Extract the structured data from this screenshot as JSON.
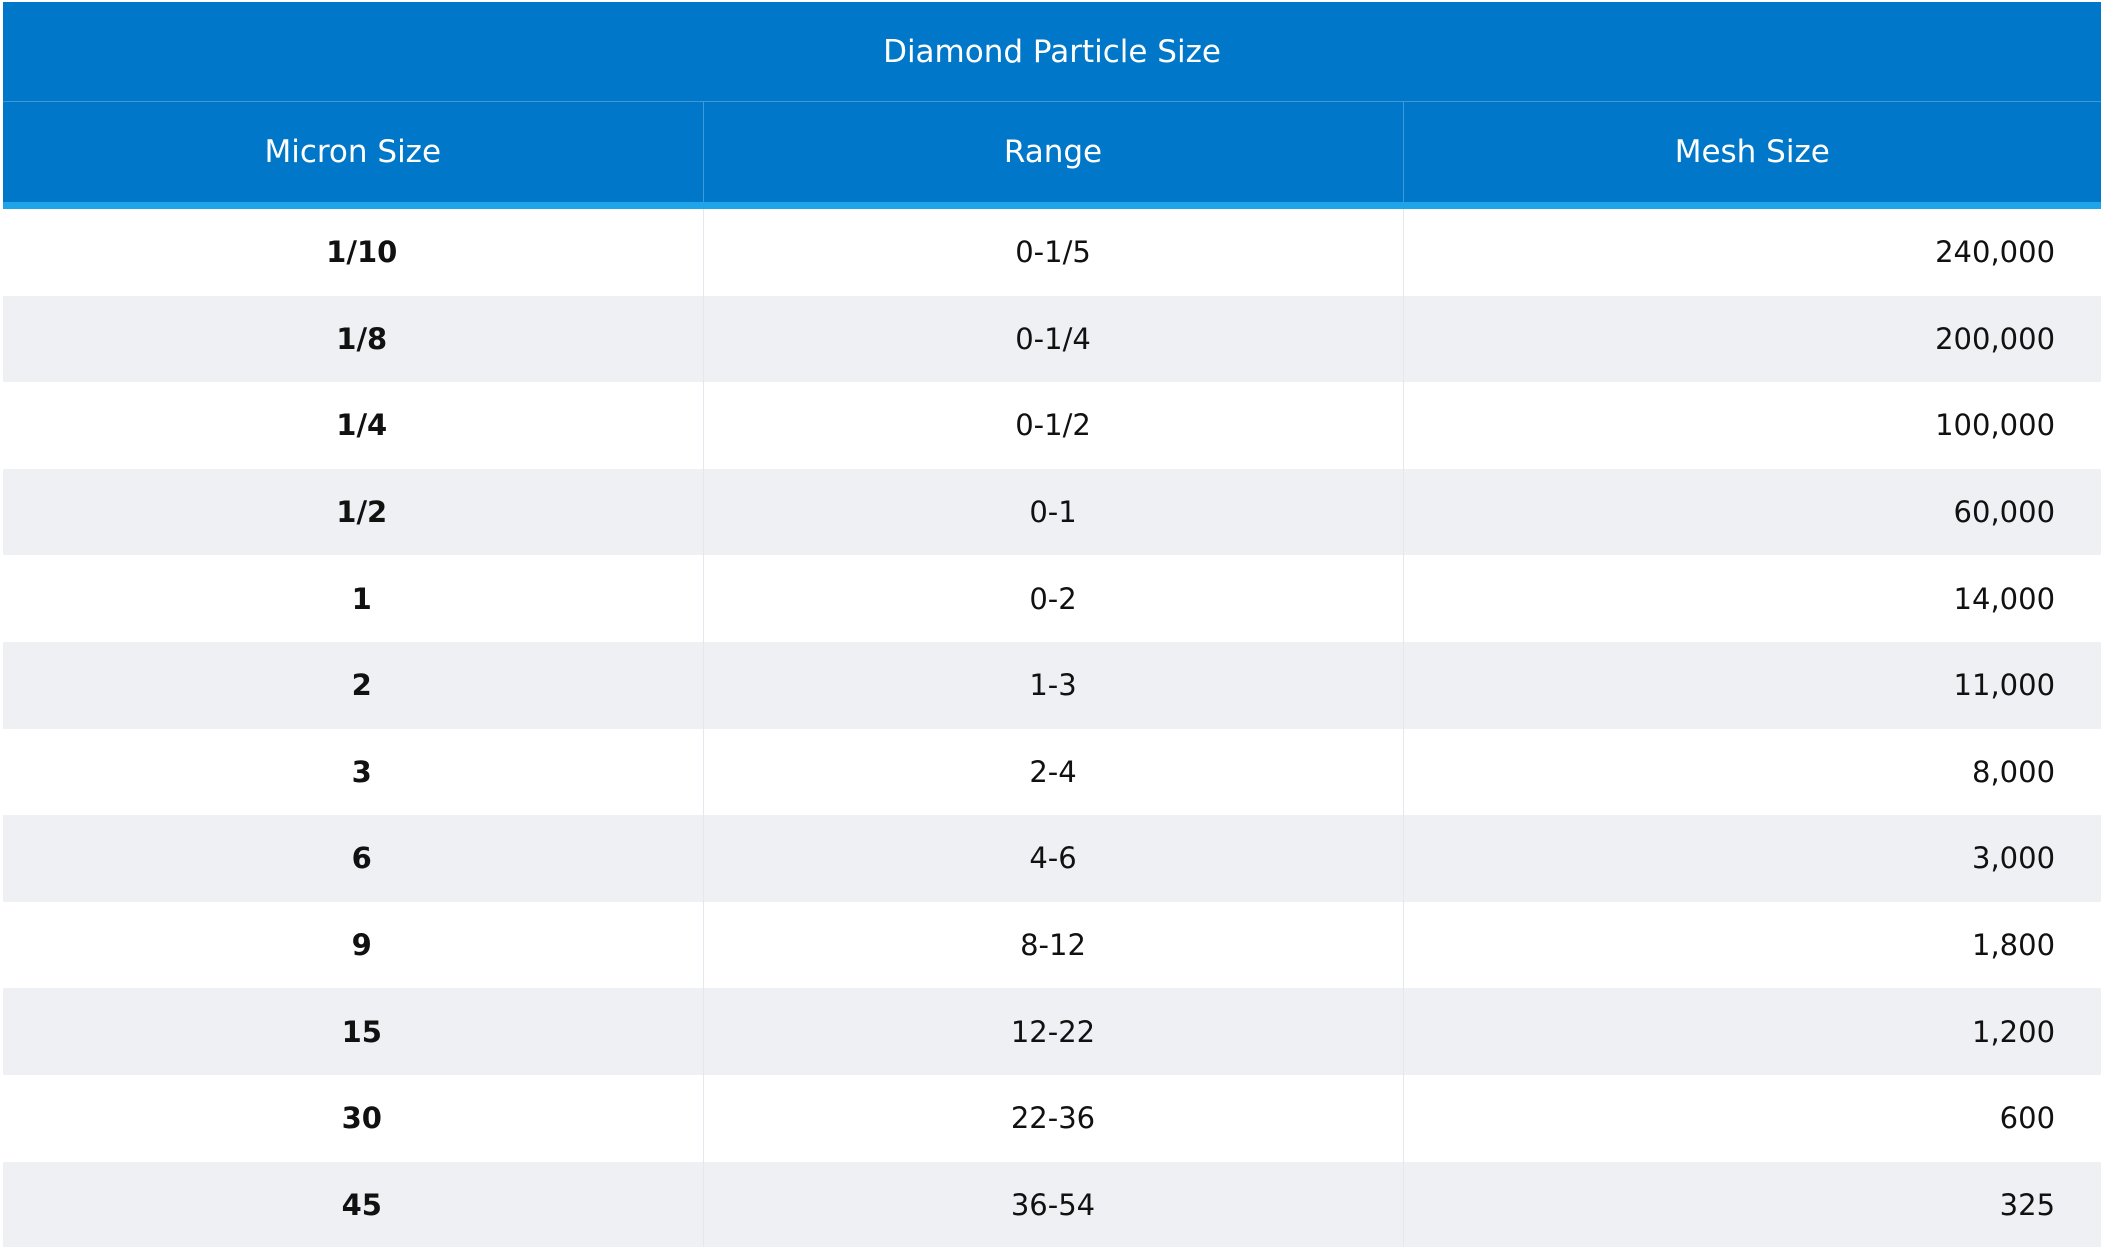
{
  "table": {
    "title": "Diamond Particle Size",
    "headers": {
      "micron": "Micron Size",
      "range": "Range",
      "mesh": "Mesh Size"
    },
    "rows": [
      {
        "micron": "1/10",
        "range": "0-1/5",
        "mesh": "240,000"
      },
      {
        "micron": "1/8",
        "range": "0-1/4",
        "mesh": "200,000"
      },
      {
        "micron": "1/4",
        "range": "0-1/2",
        "mesh": "100,000"
      },
      {
        "micron": "1/2",
        "range": "0-1",
        "mesh": "60,000"
      },
      {
        "micron": "1",
        "range": "0-2",
        "mesh": "14,000"
      },
      {
        "micron": "2",
        "range": "1-3",
        "mesh": "11,000"
      },
      {
        "micron": "3",
        "range": "2-4",
        "mesh": "8,000"
      },
      {
        "micron": "6",
        "range": "4-6",
        "mesh": "3,000"
      },
      {
        "micron": "9",
        "range": "8-12",
        "mesh": "1,800"
      },
      {
        "micron": "15",
        "range": "12-22",
        "mesh": "1,200"
      },
      {
        "micron": "30",
        "range": "22-36",
        "mesh": "600"
      },
      {
        "micron": "45",
        "range": "36-54",
        "mesh": "325"
      }
    ]
  },
  "colors": {
    "header_bg": "#0077c8",
    "header_underline": "#1ea4e9",
    "header_text": "#ffffff",
    "row_alt_bg": "#eef0f3",
    "row_bg": "#ffffff"
  }
}
